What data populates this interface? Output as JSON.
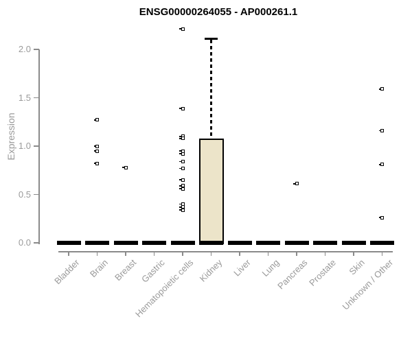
{
  "chart_data": {
    "type": "boxplot",
    "title": "ENSG00000264055 - AP000261.1",
    "ylabel": "Expression",
    "xlabel": "",
    "ylim": [
      0.0,
      2.3
    ],
    "yticks": [
      "0.0",
      "0.5",
      "1.0",
      "1.5",
      "2.0"
    ],
    "grid": false,
    "legend_position": "none",
    "categories": [
      "Bladder",
      "Brain",
      "Breast",
      "Gastric",
      "Hematopoietic cells",
      "Kidney",
      "Liver",
      "Lung",
      "Pancreas",
      "Prostate",
      "Skin",
      "Unknown / Other"
    ],
    "groups": [
      {
        "label": "Bladder",
        "median": 0,
        "points": []
      },
      {
        "label": "Brain",
        "median": 0,
        "points": [
          1.27,
          1.0,
          0.95,
          0.82
        ]
      },
      {
        "label": "Breast",
        "median": 0,
        "points": [
          0.78
        ]
      },
      {
        "label": "Gastric",
        "median": 0,
        "points": []
      },
      {
        "label": "Hematopoietic cells",
        "median": 0,
        "points": [
          2.21,
          1.39,
          1.1,
          1.08,
          0.95,
          0.92,
          0.84,
          0.77,
          0.65,
          0.59,
          0.56,
          0.4,
          0.37,
          0.34
        ]
      },
      {
        "label": "Kidney",
        "median": 0,
        "points": [],
        "box": {
          "q1": 0.0,
          "q3": 1.07,
          "median": 0.0,
          "whisker_low": 0.0,
          "whisker_high": 2.11
        }
      },
      {
        "label": "Liver",
        "median": 0,
        "points": []
      },
      {
        "label": "Lung",
        "median": 0,
        "points": []
      },
      {
        "label": "Pancreas",
        "median": 0,
        "points": [
          0.61
        ]
      },
      {
        "label": "Prostate",
        "median": 0,
        "points": []
      },
      {
        "label": "Skin",
        "median": 0,
        "points": []
      },
      {
        "label": "Unknown / Other",
        "median": 0,
        "points": [
          1.59,
          1.16,
          0.81,
          0.26
        ]
      }
    ],
    "colors": {
      "box_fill": "#ece4c9",
      "box_border": "#000000",
      "median_bar": "#000000",
      "point_fill": "#ffffff",
      "point_border": "#000000",
      "axis_line": "#8a8a8a",
      "axis_text": "#9a9a9a",
      "title_text": "#000000"
    }
  }
}
